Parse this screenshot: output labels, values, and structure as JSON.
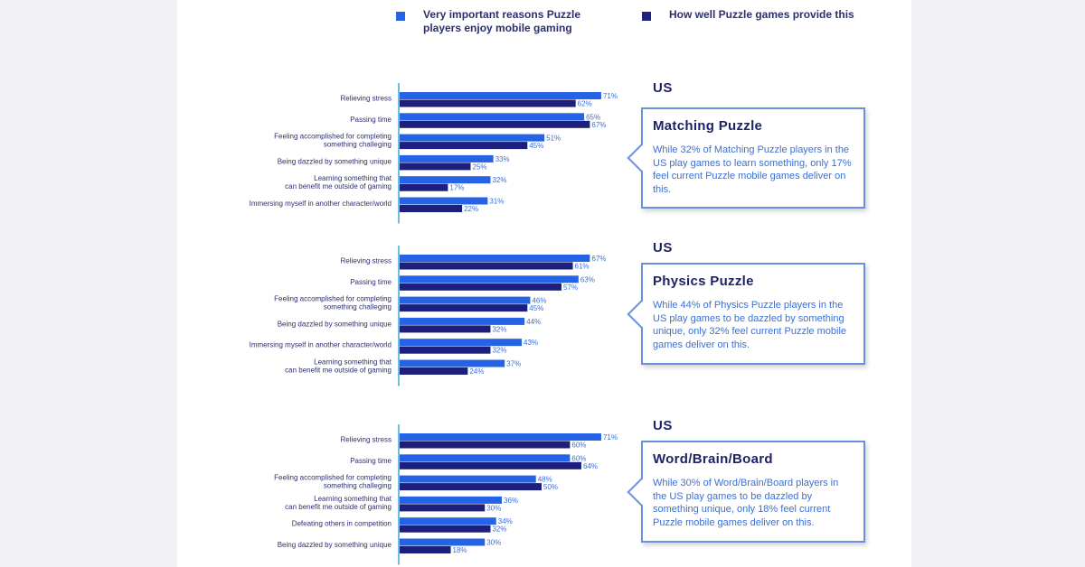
{
  "colors": {
    "series_a": "#2462e6",
    "series_b": "#1c1f7c",
    "axis": "#3fa9d8",
    "label": "#2c2f6e",
    "value": "#3b6fd6",
    "callout_border": "#6a8fe0"
  },
  "legend": {
    "a": "Very important reasons Puzzle players enjoy mobile gaming",
    "b": "How well Puzzle games provide this"
  },
  "chart_data": [
    {
      "type": "bar",
      "orientation": "horizontal",
      "region": "US",
      "categories": [
        "Relieving stress",
        "Passing time",
        "Feeling accomplished for completing\nsomething challeging",
        "Being dazzled by something unique",
        "Learning something that\ncan benefit me outside of gaming",
        "Immersing myself in another character/world"
      ],
      "series": [
        {
          "name": "Very important reasons Puzzle players enjoy mobile gaming",
          "values": [
            71,
            65,
            51,
            33,
            32,
            31
          ]
        },
        {
          "name": "How well Puzzle games provide this",
          "values": [
            62,
            67,
            45,
            25,
            17,
            22
          ]
        }
      ],
      "unit": "%",
      "callout": {
        "title": "Matching Puzzle",
        "body": "While 32% of Matching Puzzle players in the US play games to learn something, only 17% feel current Puzzle mobile games deliver on this."
      }
    },
    {
      "type": "bar",
      "orientation": "horizontal",
      "region": "US",
      "categories": [
        "Relieving stress",
        "Passing time",
        "Feeling accomplished for completing\nsomething challeging",
        "Being dazzled by something unique",
        "Immersing myself in another character/world",
        "Learning something that\ncan benefit me outside of gaming"
      ],
      "series": [
        {
          "name": "Very important reasons Puzzle players enjoy mobile gaming",
          "values": [
            67,
            63,
            46,
            44,
            43,
            37
          ]
        },
        {
          "name": "How well Puzzle games provide this",
          "values": [
            61,
            57,
            45,
            32,
            32,
            24
          ]
        }
      ],
      "unit": "%",
      "callout": {
        "title": "Physics Puzzle",
        "body": "While 44% of Physics Puzzle players in the US play games to be dazzled by something unique, only 32% feel current Puzzle mobile games deliver on this."
      }
    },
    {
      "type": "bar",
      "orientation": "horizontal",
      "region": "US",
      "categories": [
        "Relieving stress",
        "Passing time",
        "Feeling accomplished for completing\nsomething challeging",
        "Learning something that\ncan benefit me outside of gaming",
        "Defeating others in competition",
        "Being dazzled by something unique"
      ],
      "series": [
        {
          "name": "Very important reasons Puzzle players enjoy mobile gaming",
          "values": [
            71,
            60,
            48,
            36,
            34,
            30
          ]
        },
        {
          "name": "How well Puzzle games provide this",
          "values": [
            60,
            64,
            50,
            30,
            32,
            18
          ]
        }
      ],
      "unit": "%",
      "callout": {
        "title": "Word/Brain/Board",
        "body": "While 30% of Word/Brain/Board players in the US play games to be dazzled by something unique, only 18% feel current Puzzle mobile games deliver on this."
      }
    }
  ]
}
